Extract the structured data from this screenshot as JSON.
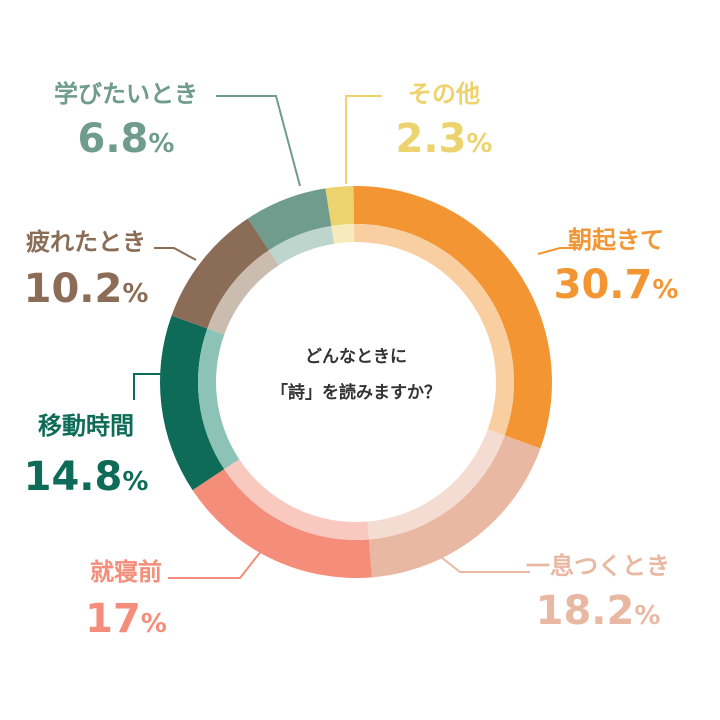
{
  "chart_data": {
    "type": "pie",
    "title": "どんなときに「詩」を読みますか？",
    "title_lines": [
      "どんなときに",
      "「詩」を読みますか？"
    ],
    "slices": [
      {
        "label": "その他",
        "value": 2.3,
        "display": "2.3",
        "color": "#ecd36e",
        "inner_color": "#f6ebbd"
      },
      {
        "label": "朝起きて",
        "value": 30.7,
        "display": "30.7",
        "color": "#f29532",
        "inner_color": "#f9cfa1"
      },
      {
        "label": "一息つくとき",
        "value": 18.2,
        "display": "18.2",
        "color": "#e9b8a3",
        "inner_color": "#f4dcd2"
      },
      {
        "label": "就寝前",
        "value": 17,
        "display": "17",
        "color": "#f48e7a",
        "inner_color": "#f9c9bf"
      },
      {
        "label": "移動時間",
        "value": 14.8,
        "display": "14.8",
        "color": "#0d6b57",
        "inner_color": "#8cc3b6"
      },
      {
        "label": "疲れたとき",
        "value": 10.2,
        "display": "10.2",
        "color": "#8b6c56",
        "inner_color": "#cbbcb0"
      },
      {
        "label": "学びたいとき",
        "value": 6.8,
        "display": "6.8",
        "color": "#6f9c8c",
        "inner_color": "#bdd5cc"
      }
    ],
    "unit": "%",
    "legend": "none"
  }
}
